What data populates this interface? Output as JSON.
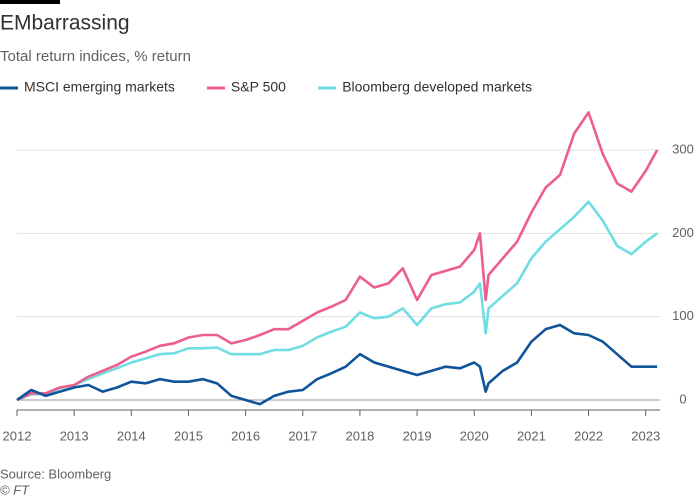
{
  "chart_data": {
    "type": "line",
    "title": "EMbarrassing",
    "subtitle": "Total return indices, % return",
    "source": "Source: Bloomberg",
    "credit": "© FT",
    "x": [
      2012,
      2012.25,
      2012.5,
      2012.75,
      2013,
      2013.25,
      2013.5,
      2013.75,
      2014,
      2014.25,
      2014.5,
      2014.75,
      2015,
      2015.25,
      2015.5,
      2015.75,
      2016,
      2016.25,
      2016.5,
      2016.75,
      2017,
      2017.25,
      2017.5,
      2017.75,
      2018,
      2018.25,
      2018.5,
      2018.75,
      2019,
      2019.25,
      2019.5,
      2019.75,
      2020,
      2020.1,
      2020.2,
      2020.25,
      2020.5,
      2020.75,
      2021,
      2021.25,
      2021.5,
      2021.75,
      2022,
      2022.25,
      2022.5,
      2022.75,
      2023,
      2023.2
    ],
    "series": [
      {
        "name": "MSCI emerging markets",
        "color": "#0f5499",
        "values": [
          0,
          12,
          5,
          10,
          15,
          18,
          10,
          15,
          22,
          20,
          25,
          22,
          22,
          25,
          20,
          5,
          0,
          -5,
          5,
          10,
          12,
          25,
          32,
          40,
          55,
          45,
          40,
          35,
          30,
          35,
          40,
          38,
          45,
          40,
          10,
          20,
          35,
          45,
          70,
          85,
          90,
          80,
          78,
          70,
          55,
          40,
          40,
          40
        ]
      },
      {
        "name": "S&P 500",
        "color": "#eb5e8d",
        "values": [
          0,
          8,
          8,
          15,
          18,
          28,
          35,
          42,
          52,
          58,
          65,
          68,
          75,
          78,
          78,
          68,
          72,
          78,
          85,
          85,
          95,
          105,
          112,
          120,
          148,
          135,
          140,
          158,
          120,
          150,
          155,
          160,
          180,
          200,
          120,
          150,
          170,
          190,
          225,
          255,
          270,
          320,
          345,
          295,
          260,
          250,
          275,
          300
        ]
      },
      {
        "name": "Bloomberg developed markets",
        "color": "#70dde3",
        "values": [
          0,
          7,
          7,
          14,
          18,
          25,
          32,
          38,
          45,
          50,
          55,
          56,
          62,
          62,
          63,
          55,
          55,
          55,
          60,
          60,
          65,
          75,
          82,
          88,
          105,
          98,
          100,
          110,
          90,
          110,
          115,
          117,
          130,
          140,
          80,
          110,
          125,
          140,
          170,
          190,
          205,
          220,
          238,
          215,
          185,
          175,
          190,
          200
        ]
      }
    ],
    "xlim": [
      2012,
      2023.25
    ],
    "xticks": [
      2012,
      2013,
      2014,
      2015,
      2016,
      2017,
      2018,
      2019,
      2020,
      2021,
      2022,
      2023
    ],
    "ylim": [
      -15,
      360
    ],
    "yticks": [
      0,
      100,
      200,
      300
    ],
    "grid": true
  }
}
